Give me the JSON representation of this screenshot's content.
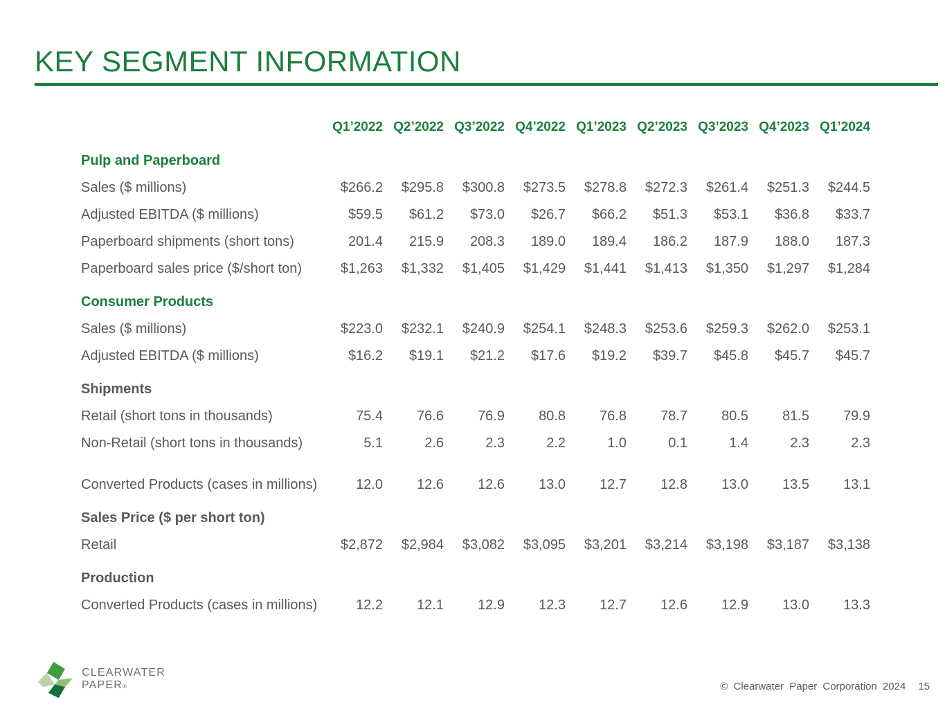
{
  "title": "KEY SEGMENT INFORMATION",
  "colors": {
    "accent_green": "#1b7e3e",
    "text_gray": "#58595b",
    "footer_gray": "#6d6e71",
    "logo_greens": [
      "#3f9d3a",
      "#bcd3ae",
      "#8cc07c",
      "#17703a"
    ]
  },
  "table": {
    "columns": [
      "Q1’2022",
      "Q2’2022",
      "Q3’2022",
      "Q4’2022",
      "Q1’2023",
      "Q2’2023",
      "Q3’2023",
      "Q4’2023",
      "Q1’2024"
    ],
    "sections": [
      {
        "heading": "Pulp and Paperboard",
        "style": "green",
        "rows": [
          {
            "label": "Sales ($ millions)",
            "values": [
              "$266.2",
              "$295.8",
              "$300.8",
              "$273.5",
              "$278.8",
              "$272.3",
              "$261.4",
              "$251.3",
              "$244.5"
            ]
          },
          {
            "label": "Adjusted EBITDA ($ millions)",
            "values": [
              "$59.5",
              "$61.2",
              "$73.0",
              "$26.7",
              "$66.2",
              "$51.3",
              "$53.1",
              "$36.8",
              "$33.7"
            ]
          },
          {
            "label": "Paperboard shipments (short tons)",
            "values": [
              "201.4",
              "215.9",
              "208.3",
              "189.0",
              "189.4",
              "186.2",
              "187.9",
              "188.0",
              "187.3"
            ]
          },
          {
            "label": "Paperboard sales price ($/short ton)",
            "values": [
              "$1,263",
              "$1,332",
              "$1,405",
              "$1,429",
              "$1,441",
              "$1,413",
              "$1,350",
              "$1,297",
              "$1,284"
            ]
          }
        ]
      },
      {
        "heading": "Consumer Products",
        "style": "green",
        "rows": [
          {
            "label": "Sales ($ millions)",
            "values": [
              "$223.0",
              "$232.1",
              "$240.9",
              "$254.1",
              "$248.3",
              "$253.6",
              "$259.3",
              "$262.0",
              "$253.1"
            ]
          },
          {
            "label": "Adjusted EBITDA ($ millions)",
            "values": [
              "$16.2",
              "$19.1",
              "$21.2",
              "$17.6",
              "$19.2",
              "$39.7",
              "$45.8",
              "$45.7",
              "$45.7"
            ]
          }
        ]
      },
      {
        "heading": "Shipments",
        "style": "dark",
        "rows": [
          {
            "label": "Retail (short tons in thousands)",
            "values": [
              "75.4",
              "76.6",
              "76.9",
              "80.8",
              "76.8",
              "78.7",
              "80.5",
              "81.5",
              "79.9"
            ]
          },
          {
            "label": "Non-Retail (short tons in thousands)",
            "values": [
              "5.1",
              "2.6",
              "2.3",
              "2.2",
              "1.0",
              "0.1",
              "1.4",
              "2.3",
              "2.3"
            ]
          },
          {
            "label": "Converted Products (cases in millions)",
            "gap_before": true,
            "values": [
              "12.0",
              "12.6",
              "12.6",
              "13.0",
              "12.7",
              "12.8",
              "13.0",
              "13.5",
              "13.1"
            ]
          }
        ]
      },
      {
        "heading": "Sales Price ($ per short ton)",
        "style": "dark",
        "rows": [
          {
            "label": "Retail",
            "values": [
              "$2,872",
              "$2,984",
              "$3,082",
              "$3,095",
              "$3,201",
              "$3,214",
              "$3,198",
              "$3,187",
              "$3,138"
            ]
          }
        ]
      },
      {
        "heading": "Production",
        "style": "dark",
        "rows": [
          {
            "label": "Converted Products (cases in millions)",
            "values": [
              "12.2",
              "12.1",
              "12.9",
              "12.3",
              "12.7",
              "12.6",
              "12.9",
              "13.0",
              "13.3"
            ]
          }
        ]
      }
    ]
  },
  "footer": {
    "logo": {
      "icon": "clearwater-paper-logo-icon",
      "line1": "CLEARWATER",
      "line2": "PAPER",
      "registered_mark": "®"
    },
    "copyright": "© Clearwater Paper Corporation 2024",
    "page_number": "15"
  }
}
